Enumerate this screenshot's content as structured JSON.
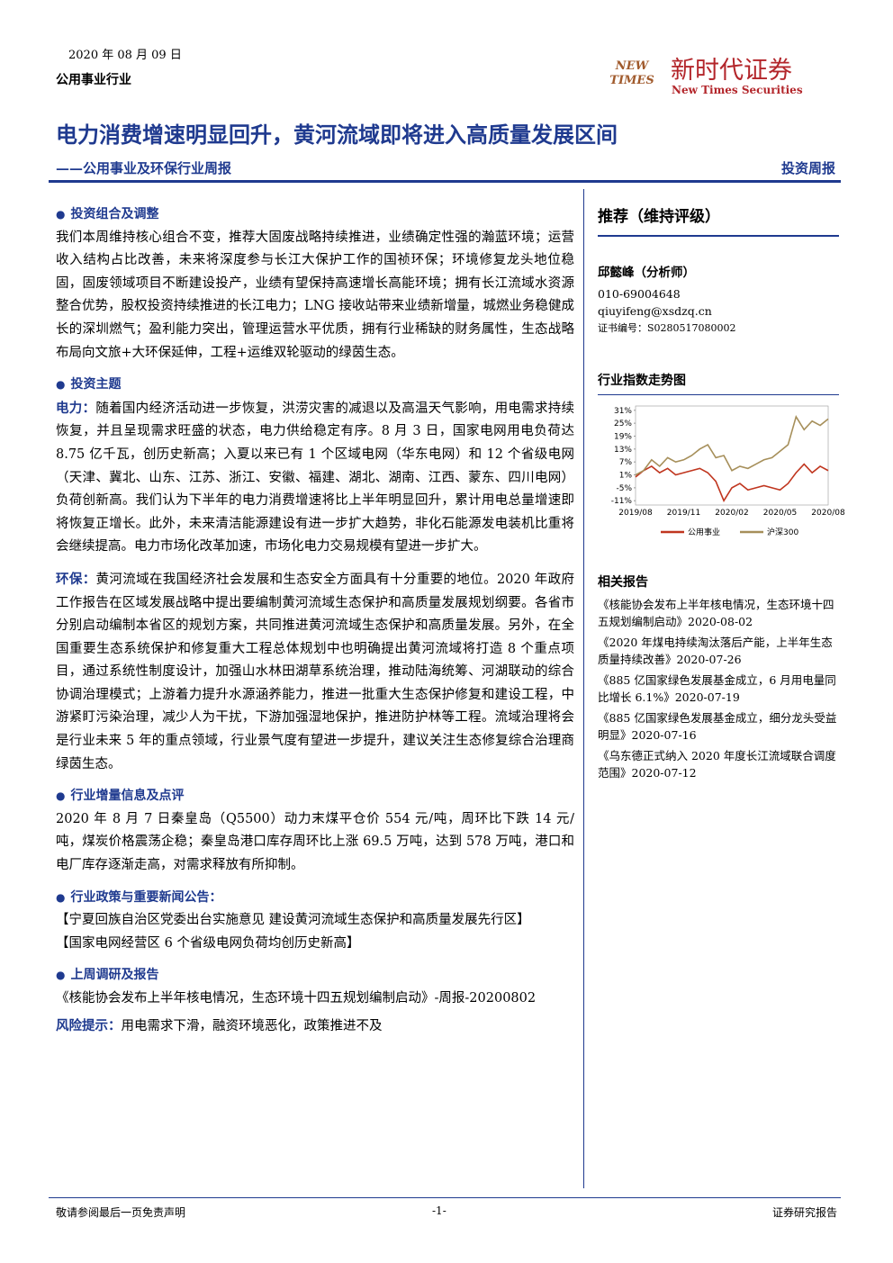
{
  "header": {
    "date": "2020 年 08 月 09 日",
    "industry": "公用事业行业",
    "logo_mark": "NEW TIMES",
    "logo_cn": "新时代证券",
    "logo_en": "New Times Securities"
  },
  "title": "电力消费增速明显回升，黄河流域即将进入高质量发展区间",
  "subtitle": "——公用事业及环保行业周报",
  "report_type": "投资周报",
  "sections": [
    {
      "heading": "投资组合及调整",
      "paragraphs": [
        {
          "text": "我们本周维持核心组合不变，推荐大固废战略持续推进，业绩确定性强的瀚蓝环境；运营收入结构占比改善，未来将深度参与长江大保护工作的国祯环保；环境修复龙头地位稳固，固废领域项目不断建设投产，业绩有望保持高速增长高能环境；拥有长江流域水资源整合优势，股权投资持续推进的长江电力；LNG 接收站带来业绩新增量，城燃业务稳健成长的深圳燃气；盈利能力突出，管理运营水平优质，拥有行业稀缺的财务属性，生态战略布局向文旅+大环保延伸，工程+运维双轮驱动的绿茵生态。"
        }
      ]
    },
    {
      "heading": "投资主题",
      "paragraphs": [
        {
          "lead": "电力：",
          "text": "随着国内经济活动进一步恢复，洪涝灾害的减退以及高温天气影响，用电需求持续恢复，并且呈现需求旺盛的状态，电力供给稳定有序。8 月 3 日，国家电网用电负荷达 8.75 亿千瓦，创历史新高；入夏以来已有 1 个区域电网（华东电网）和 12 个省级电网（天津、冀北、山东、江苏、浙江、安徽、福建、湖北、湖南、江西、蒙东、四川电网）负荷创新高。我们认为下半年的电力消费增速将比上半年明显回升，累计用电总量增速即将恢复正增长。此外，未来清洁能源建设有进一步扩大趋势，非化石能源发电装机比重将会继续提高。电力市场化改革加速，市场化电力交易规模有望进一步扩大。"
        },
        {
          "lead": "环保：",
          "text": "黄河流域在我国经济社会发展和生态安全方面具有十分重要的地位。2020 年政府工作报告在区域发展战略中提出要编制黄河流域生态保护和高质量发展规划纲要。各省市分别启动编制本省区的规划方案，共同推进黄河流域生态保护和高质量发展。另外，在全国重要生态系统保护和修复重大工程总体规划中也明确提出黄河流域将打造 8 个重点项目，通过系统性制度设计，加强山水林田湖草系统治理，推动陆海统筹、河湖联动的综合协调治理模式；上游着力提升水源涵养能力，推进一批重大生态保护修复和建设工程，中游紧盯污染治理，减少人为干扰，下游加强湿地保护，推进防护林等工程。流域治理将会是行业未来 5 年的重点领域，行业景气度有望进一步提升，建议关注生态修复综合治理商绿茵生态。"
        }
      ]
    },
    {
      "heading": "行业增量信息及点评",
      "paragraphs": [
        {
          "text": "2020 年 8 月 7 日秦皇岛（Q5500）动力末煤平仓价 554 元/吨，周环比下跌 14 元/吨，煤炭价格震荡企稳；秦皇岛港口库存周环比上涨 69.5 万吨，达到 578 万吨，港口和电厂库存逐渐走高，对需求释放有所抑制。"
        }
      ]
    },
    {
      "heading": "行业政策与重要新闻公告：",
      "paragraphs": [
        {
          "text": "【宁夏回族自治区党委出台实施意见 建设黄河流域生态保护和高质量发展先行区】"
        },
        {
          "text": "【国家电网经营区 6 个省级电网负荷均创历史新高】"
        }
      ]
    },
    {
      "heading": "上周调研及报告",
      "paragraphs": [
        {
          "text": "《核能协会发布上半年核电情况，生态环境十四五规划编制启动》-周报-20200802"
        }
      ]
    }
  ],
  "risk": {
    "lead": "风险提示：",
    "text": "用电需求下滑，融资环境恶化，政策推进不及"
  },
  "sidebar": {
    "rating": "推荐（维持评级）",
    "analyst": "邱懿峰（分析师）",
    "phone": "010-69004648",
    "email": "qiuyifeng@xsdzq.cn",
    "cert": "证书编号：S0280517080002",
    "related_heading": "相关报告",
    "related": [
      "《核能协会发布上半年核电情况，生态环境十四五规划编制启动》2020-08-02",
      "《2020 年煤电持续淘汰落后产能，上半年生态质量持续改善》2020-07-26",
      "《885 亿国家绿色发展基金成立，6 月用电量同比增长 6.1%》2020-07-19",
      "《885 亿国家绿色发展基金成立，细分龙头受益明显》2020-07-16",
      "《乌东德正式纳入 2020 年度长江流域联合调度范围》2020-07-12"
    ]
  },
  "chart_data": {
    "type": "line",
    "title": "行业指数走势图",
    "categories": [
      "2019/08",
      null,
      null,
      null,
      null,
      null,
      "2019/11",
      null,
      null,
      null,
      null,
      null,
      "2020/02",
      null,
      null,
      null,
      null,
      null,
      "2020/05",
      null,
      null,
      null,
      null,
      null,
      "2020/08"
    ],
    "series": [
      {
        "name": "公用事业",
        "color": "#c0361f",
        "values": [
          0,
          3,
          5,
          2,
          4,
          1,
          2,
          3,
          4,
          2,
          -2,
          -11,
          -5,
          -3,
          -6,
          -5,
          -4,
          -5,
          -6,
          -3,
          2,
          6,
          2,
          5,
          3
        ]
      },
      {
        "name": "沪深300",
        "color": "#a68f5a",
        "values": [
          1,
          3,
          8,
          5,
          9,
          7,
          8,
          10,
          13,
          15,
          9,
          10,
          3,
          5,
          4,
          6,
          8,
          9,
          12,
          15,
          28,
          22,
          26,
          24,
          27
        ]
      }
    ],
    "ylim": [
      -13,
      33
    ],
    "yticks": [
      {
        "value": -11,
        "label": "-11%"
      },
      {
        "value": -5,
        "label": "-5%"
      },
      {
        "value": 1,
        "label": "1%"
      },
      {
        "value": 7,
        "label": "7%"
      },
      {
        "value": 13,
        "label": "13%"
      },
      {
        "value": 19,
        "label": "19%"
      },
      {
        "value": 25,
        "label": "25%"
      },
      {
        "value": 31,
        "label": "31%"
      }
    ],
    "legend": "bottom"
  },
  "footer": {
    "left": "敬请参阅最后一页免责声明",
    "center": "-1-",
    "right": "证券研究报告"
  }
}
